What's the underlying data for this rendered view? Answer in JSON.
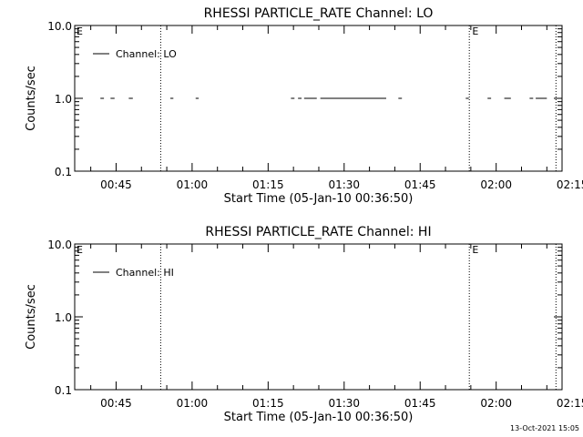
{
  "footer": {
    "timestamp": "13-Oct-2021 15:05"
  },
  "chart_data": [
    {
      "type": "line",
      "title": "RHESSI PARTICLE_RATE Channel: LO",
      "xlabel": "Start Time (05-Jan-10 00:36:50)",
      "ylabel": "Counts/sec",
      "yscale": "log",
      "ylim": [
        0.1,
        10.0
      ],
      "xlim_min": [
        36.83,
        133.0
      ],
      "x_ticks": [
        {
          "min": 45,
          "label": "00:45"
        },
        {
          "min": 60,
          "label": "01:00"
        },
        {
          "min": 75,
          "label": "01:15"
        },
        {
          "min": 90,
          "label": "01:30"
        },
        {
          "min": 105,
          "label": "01:45"
        },
        {
          "min": 120,
          "label": "02:00"
        },
        {
          "min": 135,
          "label": "02:15"
        }
      ],
      "y_ticks": [
        {
          "value": 0.1,
          "label": "0.1"
        },
        {
          "value": 1.0,
          "label": "1.0"
        },
        {
          "value": 10.0,
          "label": "10.0"
        }
      ],
      "series": [
        {
          "name": "Channel: LO",
          "color": "#000000",
          "y": 1.0,
          "segments_min": [
            [
              41.9,
              42.6
            ],
            [
              43.9,
              44.7
            ],
            [
              47.5,
              48.3
            ],
            [
              55.7,
              56.3
            ],
            [
              60.7,
              61.3
            ],
            [
              79.5,
              80.2
            ],
            [
              80.9,
              81.6
            ],
            [
              82.1,
              84.6
            ],
            [
              85.3,
              98.3
            ],
            [
              100.7,
              101.4
            ],
            [
              114.0,
              114.6
            ],
            [
              118.3,
              119.0
            ],
            [
              121.6,
              122.9
            ],
            [
              126.6,
              127.3
            ],
            [
              127.8,
              130.0
            ]
          ]
        }
      ],
      "vlines_min": [
        53.8,
        114.7,
        131.8
      ],
      "event_markers": [
        {
          "label": "E",
          "min": 37.0
        },
        {
          "label": "E",
          "min": 115.1
        }
      ]
    },
    {
      "type": "line",
      "title": "RHESSI PARTICLE_RATE Channel: HI",
      "xlabel": "Start Time (05-Jan-10 00:36:50)",
      "ylabel": "Counts/sec",
      "yscale": "log",
      "ylim": [
        0.1,
        10.0
      ],
      "xlim_min": [
        36.83,
        133.0
      ],
      "x_ticks": [
        {
          "min": 45,
          "label": "00:45"
        },
        {
          "min": 60,
          "label": "01:00"
        },
        {
          "min": 75,
          "label": "01:15"
        },
        {
          "min": 90,
          "label": "01:30"
        },
        {
          "min": 105,
          "label": "01:45"
        },
        {
          "min": 120,
          "label": "02:00"
        },
        {
          "min": 135,
          "label": "02:15"
        }
      ],
      "y_ticks": [
        {
          "value": 0.1,
          "label": "0.1"
        },
        {
          "value": 1.0,
          "label": "1.0"
        },
        {
          "value": 10.0,
          "label": "10.0"
        }
      ],
      "series": [
        {
          "name": "Channel: HI",
          "color": "#000000",
          "y": 1.0,
          "segments_min": []
        }
      ],
      "vlines_min": [
        53.8,
        114.7,
        131.8
      ],
      "event_markers": [
        {
          "label": "E",
          "min": 37.0
        },
        {
          "label": "E",
          "min": 115.1
        }
      ]
    }
  ]
}
